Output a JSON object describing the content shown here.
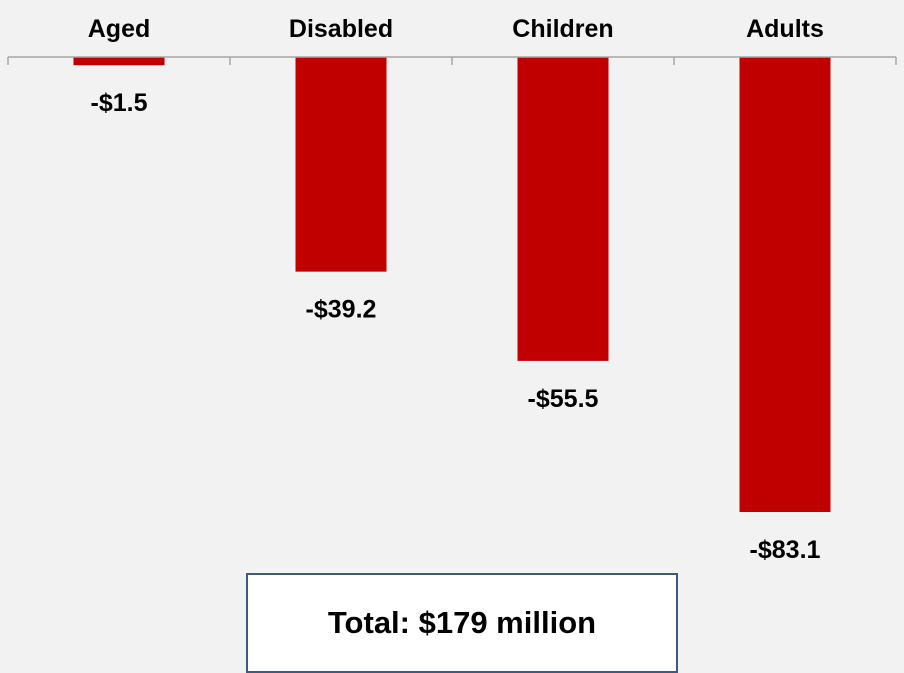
{
  "chart_data": {
    "type": "bar",
    "categories": [
      "Aged",
      "Disabled",
      "Children",
      "Adults"
    ],
    "values": [
      -1.5,
      -39.2,
      -55.5,
      -83.1
    ],
    "value_labels": [
      "-$1.5",
      "-$39.2",
      "-$55.5",
      "-$83.1"
    ],
    "title": "",
    "xlabel": "",
    "ylabel": "",
    "ylim": [
      -83.1,
      0
    ],
    "x_axis_position": "top",
    "grid": false,
    "legend": "none",
    "bar_color": "#c00000",
    "axis_color": "#a6a6a6",
    "annotation": "Total: $179 million"
  }
}
